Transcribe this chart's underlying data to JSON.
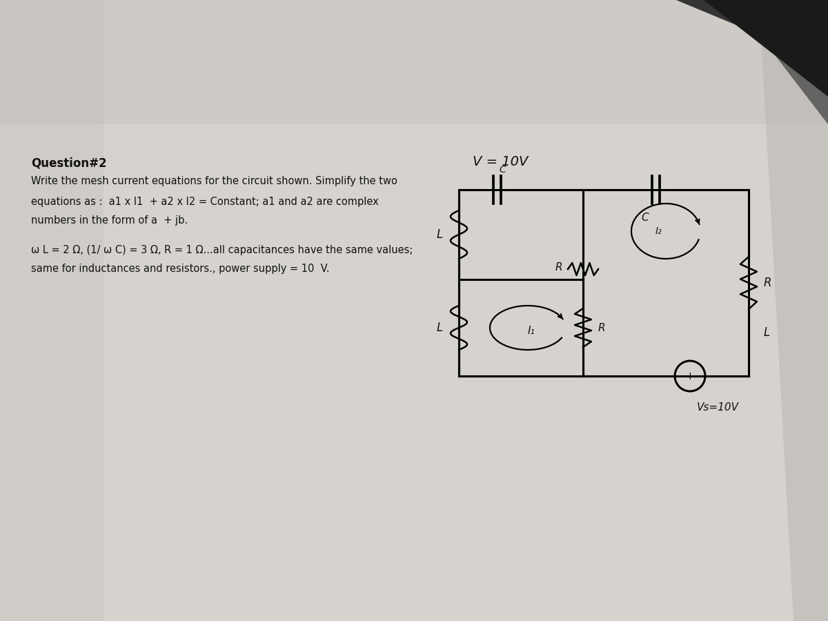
{
  "bg_top_left": "#b8b5b0",
  "bg_main": "#e8e5e0",
  "bg_white": "#f0eeeb",
  "title": "Question#2",
  "line1": "Write the mesh current equations for the circuit shown. Simplify the two",
  "line2": "equations as :  a1 x I1  + a2 x I2 = Constant; a1 and a2 are complex",
  "line3": "numbers in the form of a  + jb.",
  "line4": "ω L = 2 Ω, (1/ ω C) = 3 Ω, R = 1 Ω...all capacitances have the same values;",
  "line5": "same for inductances and resistors., power supply = 10  V.",
  "v_label": "V = 10V",
  "vs_label": "Vs=10V",
  "shadow_color": "#2a2a2a",
  "text_color": "#111111"
}
